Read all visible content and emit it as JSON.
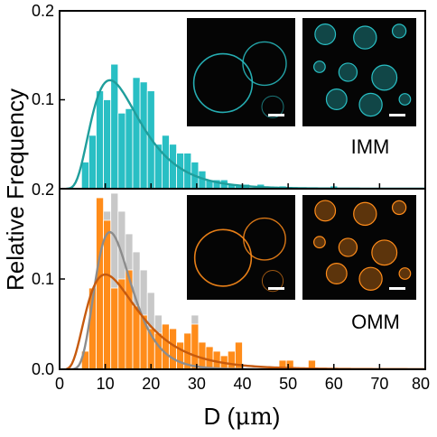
{
  "figure": {
    "ylabel": "Relative Frequency",
    "xlabel_prefix": "D (",
    "xlabel_unit": "μm",
    "xlabel_suffix": ")",
    "x_ticks": [
      "0",
      "10",
      "20",
      "30",
      "40",
      "50",
      "60",
      "70",
      "80"
    ],
    "top_y_ticks": [
      "0.2",
      "0.1"
    ],
    "bottom_y_ticks": [
      "0.2",
      "0.1",
      "0.0"
    ],
    "top_panel_label": "IMM",
    "bottom_panel_label": "OMM"
  },
  "chart_data": [
    {
      "type": "bar",
      "panel": "top",
      "label": "IMM",
      "xlabel": "D (μm)",
      "ylabel": "Relative Frequency",
      "xlim": [
        0,
        80
      ],
      "ylim": [
        0,
        0.2
      ],
      "bin_width": 1.6,
      "color": "#29BFC4",
      "series": [
        {
          "values": [
            {
              "x": 4.8,
              "y": 0.03
            },
            {
              "x": 6.4,
              "y": 0.06
            },
            {
              "x": 8.0,
              "y": 0.11
            },
            {
              "x": 9.6,
              "y": 0.1
            },
            {
              "x": 11.2,
              "y": 0.14
            },
            {
              "x": 12.8,
              "y": 0.085
            },
            {
              "x": 14.4,
              "y": 0.09
            },
            {
              "x": 16.0,
              "y": 0.125
            },
            {
              "x": 17.6,
              "y": 0.12
            },
            {
              "x": 19.2,
              "y": 0.11
            },
            {
              "x": 20.8,
              "y": 0.05
            },
            {
              "x": 22.4,
              "y": 0.06
            },
            {
              "x": 24.0,
              "y": 0.05
            },
            {
              "x": 25.6,
              "y": 0.04
            },
            {
              "x": 27.2,
              "y": 0.04
            },
            {
              "x": 28.8,
              "y": 0.03
            },
            {
              "x": 30.4,
              "y": 0.02
            },
            {
              "x": 32.0,
              "y": 0.01
            },
            {
              "x": 33.6,
              "y": 0.01
            },
            {
              "x": 35.2,
              "y": 0.01
            },
            {
              "x": 36.8,
              "y": 0.005
            },
            {
              "x": 38.4,
              "y": 0.005
            },
            {
              "x": 40.0,
              "y": 0.005
            },
            {
              "x": 43.2,
              "y": 0.005
            },
            {
              "x": 48.0,
              "y": 0.003
            },
            {
              "x": 59.2,
              "y": 0.003
            }
          ]
        }
      ],
      "fit": {
        "color": "#1F9E9C",
        "peak_x": 11,
        "peak_y": 0.122,
        "sigma": 0.48
      }
    },
    {
      "type": "bar",
      "panel": "bottom",
      "label": "OMM",
      "xlabel": "D (μm)",
      "ylabel": "Relative Frequency",
      "xlim": [
        0,
        80
      ],
      "ylim": [
        0,
        0.2
      ],
      "bin_width": 1.6,
      "series": [
        {
          "color": "#C8C8C8",
          "values": [
            {
              "x": 6.4,
              "y": 0.05
            },
            {
              "x": 8.0,
              "y": 0.11
            },
            {
              "x": 9.6,
              "y": 0.175
            },
            {
              "x": 11.2,
              "y": 0.195
            },
            {
              "x": 12.8,
              "y": 0.175
            },
            {
              "x": 14.4,
              "y": 0.15
            },
            {
              "x": 16.0,
              "y": 0.13
            },
            {
              "x": 17.6,
              "y": 0.11
            },
            {
              "x": 19.2,
              "y": 0.085
            },
            {
              "x": 20.8,
              "y": 0.06
            },
            {
              "x": 22.4,
              "y": 0.045
            },
            {
              "x": 24.0,
              "y": 0.03
            },
            {
              "x": 25.6,
              "y": 0.025
            },
            {
              "x": 27.2,
              "y": 0.04
            },
            {
              "x": 28.8,
              "y": 0.06
            }
          ]
        },
        {
          "color": "#FF8C1A",
          "values": [
            {
              "x": 4.8,
              "y": 0.02
            },
            {
              "x": 6.4,
              "y": 0.09
            },
            {
              "x": 8.0,
              "y": 0.19
            },
            {
              "x": 9.6,
              "y": 0.165
            },
            {
              "x": 11.2,
              "y": 0.09
            },
            {
              "x": 12.8,
              "y": 0.1
            },
            {
              "x": 14.4,
              "y": 0.11
            },
            {
              "x": 16.0,
              "y": 0.07
            },
            {
              "x": 17.6,
              "y": 0.06
            },
            {
              "x": 19.2,
              "y": 0.045
            },
            {
              "x": 20.8,
              "y": 0.04
            },
            {
              "x": 22.4,
              "y": 0.05
            },
            {
              "x": 24.0,
              "y": 0.045
            },
            {
              "x": 25.6,
              "y": 0.03
            },
            {
              "x": 27.2,
              "y": 0.04
            },
            {
              "x": 28.8,
              "y": 0.05
            },
            {
              "x": 30.4,
              "y": 0.03
            },
            {
              "x": 32.0,
              "y": 0.025
            },
            {
              "x": 33.6,
              "y": 0.02
            },
            {
              "x": 35.2,
              "y": 0.015
            },
            {
              "x": 36.8,
              "y": 0.02
            },
            {
              "x": 38.4,
              "y": 0.03
            },
            {
              "x": 40.0,
              "y": 0.0
            },
            {
              "x": 48.0,
              "y": 0.01
            },
            {
              "x": 49.6,
              "y": 0.01
            },
            {
              "x": 54.4,
              "y": 0.01
            }
          ]
        }
      ],
      "fits": [
        {
          "color": "#8C8C8C",
          "peak_x": 11,
          "peak_y": 0.152,
          "sigma": 0.36
        },
        {
          "color": "#C65A0E",
          "peak_x": 10,
          "peak_y": 0.105,
          "sigma": 0.55
        }
      ]
    }
  ],
  "insets": {
    "top": [
      {
        "type": "dark micrograph",
        "tint": "#29BFC4",
        "style": "rings"
      },
      {
        "type": "dark micrograph",
        "tint": "#29BFC4",
        "style": "vesicles"
      }
    ],
    "bottom": [
      {
        "type": "dark micrograph",
        "tint": "#FF8C1A",
        "style": "rings"
      },
      {
        "type": "dark micrograph",
        "tint": "#FF8C1A",
        "style": "vesicles"
      }
    ]
  }
}
